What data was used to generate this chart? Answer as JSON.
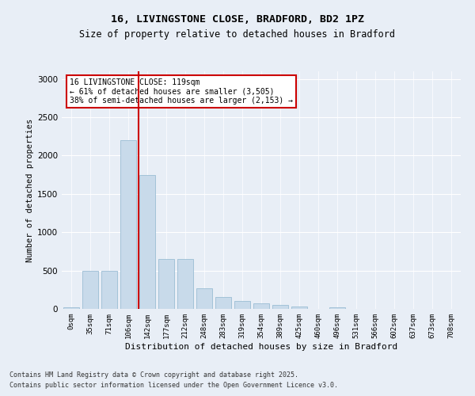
{
  "title1": "16, LIVINGSTONE CLOSE, BRADFORD, BD2 1PZ",
  "title2": "Size of property relative to detached houses in Bradford",
  "xlabel": "Distribution of detached houses by size in Bradford",
  "ylabel": "Number of detached properties",
  "bar_color": "#c8daea",
  "bar_edge_color": "#9bbdd4",
  "categories": [
    "0sqm",
    "35sqm",
    "71sqm",
    "106sqm",
    "142sqm",
    "177sqm",
    "212sqm",
    "248sqm",
    "283sqm",
    "319sqm",
    "354sqm",
    "389sqm",
    "425sqm",
    "460sqm",
    "496sqm",
    "531sqm",
    "566sqm",
    "602sqm",
    "637sqm",
    "673sqm",
    "708sqm"
  ],
  "values": [
    20,
    500,
    500,
    2200,
    1750,
    650,
    650,
    270,
    160,
    100,
    70,
    50,
    30,
    5,
    20,
    3,
    2,
    1,
    1,
    1,
    1
  ],
  "ylim": [
    0,
    3100
  ],
  "yticks": [
    0,
    500,
    1000,
    1500,
    2000,
    2500,
    3000
  ],
  "vline_x": 3.55,
  "annotation_text": "16 LIVINGSTONE CLOSE: 119sqm\n← 61% of detached houses are smaller (3,505)\n38% of semi-detached houses are larger (2,153) →",
  "annotation_box_color": "#ffffff",
  "annotation_box_edge": "#cc0000",
  "vline_color": "#cc0000",
  "footer1": "Contains HM Land Registry data © Crown copyright and database right 2025.",
  "footer2": "Contains public sector information licensed under the Open Government Licence v3.0.",
  "bg_color": "#e8eef6",
  "plot_bg": "#e8eef6"
}
